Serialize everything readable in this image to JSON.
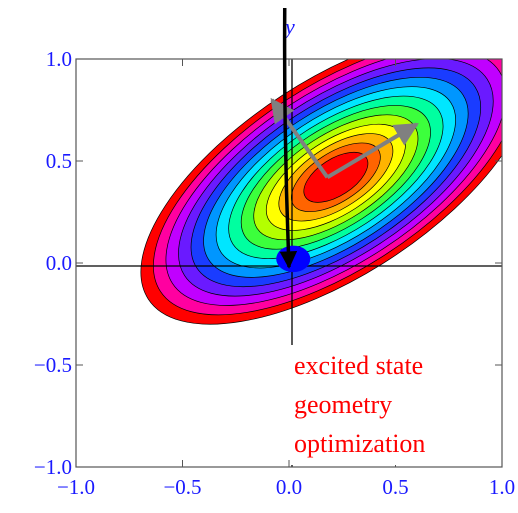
{
  "chart_data": {
    "type": "contour",
    "xlim": [
      -1.0,
      1.0
    ],
    "ylim": [
      -1.0,
      1.0
    ],
    "x_ticks": [
      -1.0,
      -0.5,
      0.0,
      0.5,
      1.0
    ],
    "y_ticks": [
      -1.0,
      -0.5,
      0.0,
      0.5,
      1.0
    ],
    "x_tick_labels": [
      "−1.0",
      "−0.5",
      "0.0",
      "0.5",
      "1.0"
    ],
    "y_tick_labels": [
      "−1.0",
      "−0.5",
      "0.0",
      "0.5",
      "1.0"
    ],
    "y_axis_name": "y",
    "contour_levels": 14,
    "surface": {
      "center": [
        0.22,
        0.42
      ],
      "rotation_deg": 33,
      "outer_semi_axes": [
        1.05,
        0.48
      ],
      "inner_semi_axes": [
        0.17,
        0.09
      ],
      "fill_colors": [
        "#ff0000",
        "#ff00a0",
        "#c000ff",
        "#6a1aff",
        "#1a3cff",
        "#0096ff",
        "#00e6ff",
        "#00ffa0",
        "#3cff3c",
        "#b4ff00",
        "#ffff00",
        "#ffb400",
        "#ff6400",
        "#ff0000"
      ]
    },
    "normal_mode_vectors": {
      "origin": [
        0.18,
        0.42
      ],
      "tips": [
        [
          0.6,
          0.68
        ],
        [
          -0.08,
          0.8
        ]
      ]
    },
    "trajectory_arrow": {
      "from": [
        -0.02,
        1.25
      ],
      "to": [
        0.0,
        -0.02
      ]
    },
    "marker": {
      "position": [
        0.02,
        0.02
      ],
      "radius": [
        0.08,
        0.065
      ]
    },
    "colors": {
      "marker": "#0000ff",
      "vectors": "#808080",
      "trajectory": "#000000",
      "ticks": "#1a1aff",
      "annotation": "#ff0000"
    },
    "annotation": [
      "excited state",
      "geometry",
      "optimization"
    ]
  }
}
